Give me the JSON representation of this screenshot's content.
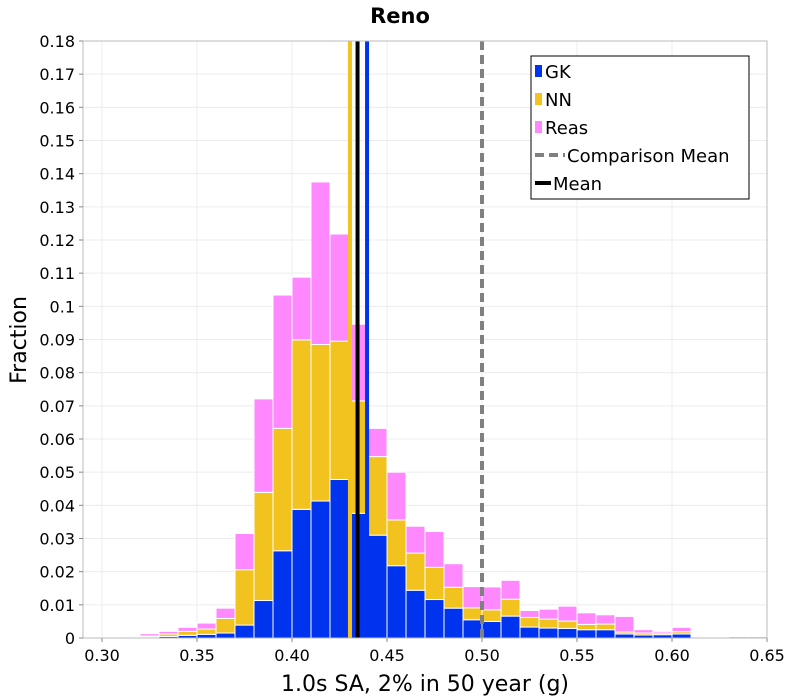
{
  "chart_data": {
    "type": "bar",
    "stacked": true,
    "title": "Reno",
    "xlabel": "1.0s SA, 2% in 50 year (g)",
    "ylabel": "Fraction",
    "xlim": [
      0.29,
      0.65
    ],
    "ylim": [
      0,
      0.18
    ],
    "grid": true,
    "bin_width": 0.01,
    "x_ticks": [
      "0.30",
      "0.35",
      "0.40",
      "0.45",
      "0.50",
      "0.55",
      "0.60",
      "0.65"
    ],
    "x_tick_values": [
      0.3,
      0.35,
      0.4,
      0.45,
      0.5,
      0.55,
      0.6,
      0.65
    ],
    "y_ticks": [
      "0",
      "0.01",
      "0.02",
      "0.03",
      "0.04",
      "0.05",
      "0.06",
      "0.07",
      "0.08",
      "0.09",
      "0.1",
      "0.11",
      "0.12",
      "0.13",
      "0.14",
      "0.15",
      "0.16",
      "0.17",
      "0.18"
    ],
    "y_tick_values": [
      0,
      0.01,
      0.02,
      0.03,
      0.04,
      0.05,
      0.06,
      0.07,
      0.08,
      0.09,
      0.1,
      0.11,
      0.12,
      0.13,
      0.14,
      0.15,
      0.16,
      0.17,
      0.18
    ],
    "bin_starts": [
      0.3,
      0.31,
      0.32,
      0.33,
      0.34,
      0.35,
      0.36,
      0.37,
      0.38,
      0.39,
      0.4,
      0.41,
      0.42,
      0.43,
      0.44,
      0.45,
      0.46,
      0.47,
      0.48,
      0.49,
      0.5,
      0.51,
      0.52,
      0.53,
      0.54,
      0.55,
      0.56,
      0.57,
      0.58,
      0.59,
      0.6,
      0.61,
      0.62,
      0.63,
      0.64
    ],
    "series": [
      {
        "name": "GK",
        "color": "#0033ee",
        "values": [
          0.0,
          0.0002,
          0.0003,
          0.0005,
          0.0008,
          0.0011,
          0.0015,
          0.0039,
          0.0113,
          0.0263,
          0.0388,
          0.0413,
          0.0478,
          0.0376,
          0.031,
          0.0218,
          0.0144,
          0.0116,
          0.009,
          0.0055,
          0.005,
          0.0066,
          0.0033,
          0.003,
          0.0029,
          0.0025,
          0.0025,
          0.0012,
          0.0009,
          0.001,
          0.0012,
          0.0003,
          0.0,
          0.0,
          0.0
        ]
      },
      {
        "name": "NN",
        "color": "#f2c31f",
        "values": [
          0.0,
          0.0001,
          0.0003,
          0.0007,
          0.0012,
          0.0016,
          0.0044,
          0.0167,
          0.0326,
          0.0369,
          0.0511,
          0.0472,
          0.0417,
          0.0339,
          0.0237,
          0.0138,
          0.0112,
          0.0097,
          0.0063,
          0.0036,
          0.0035,
          0.0051,
          0.0029,
          0.0027,
          0.0022,
          0.0016,
          0.0017,
          0.0006,
          0.0006,
          0.0005,
          0.0007,
          0.0002,
          0.0,
          0.0,
          0.0
        ]
      },
      {
        "name": "Reas",
        "color": "#ff88ff",
        "values": [
          0.0002,
          0.0003,
          0.0007,
          0.0008,
          0.0012,
          0.0018,
          0.0031,
          0.0109,
          0.0282,
          0.0402,
          0.0189,
          0.049,
          0.0323,
          0.0231,
          0.0085,
          0.0144,
          0.0081,
          0.0108,
          0.0071,
          0.0064,
          0.0069,
          0.0057,
          0.0021,
          0.003,
          0.0045,
          0.0035,
          0.0028,
          0.0047,
          0.001,
          0.0005,
          0.0013,
          0.0003,
          0.0,
          0.0004,
          0.0004
        ]
      }
    ],
    "vertical_lines": [
      {
        "name": "NN mean",
        "x": 0.4305,
        "color": "#f2c31f",
        "style": "solid"
      },
      {
        "name": "GK mean",
        "x": 0.4395,
        "color": "#0033ee",
        "style": "solid"
      },
      {
        "name": "Mean",
        "x": 0.4345,
        "color": "#000000",
        "style": "solid"
      },
      {
        "name": "Comparison Mean",
        "x": 0.5,
        "color": "#808080",
        "style": "dashed"
      }
    ],
    "legend": {
      "position": "top-right",
      "items": [
        {
          "label": "GK",
          "color": "#0033ee",
          "kind": "swatch"
        },
        {
          "label": "NN",
          "color": "#f2c31f",
          "kind": "swatch"
        },
        {
          "label": "Reas",
          "color": "#ff88ff",
          "kind": "swatch"
        },
        {
          "label": "Comparison Mean",
          "color": "#808080",
          "kind": "dashed"
        },
        {
          "label": "Mean",
          "color": "#000000",
          "kind": "solid"
        }
      ]
    }
  }
}
